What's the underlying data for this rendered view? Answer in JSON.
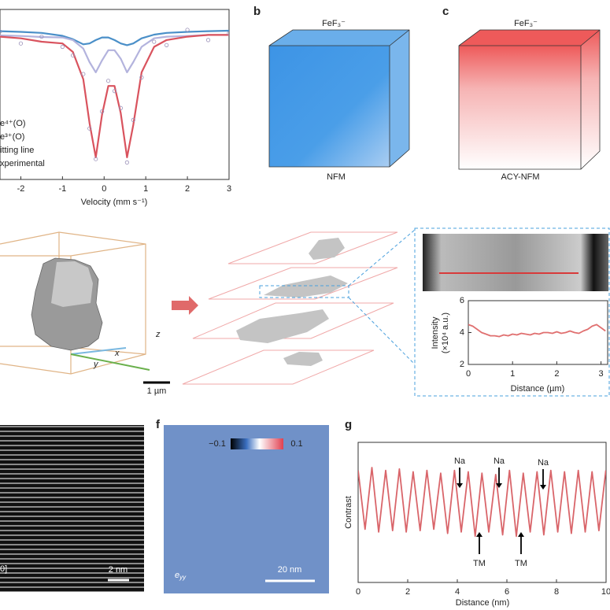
{
  "chart_data": [
    {
      "type": "line",
      "xlabel": "Velocity (mm s⁻¹)",
      "x": [
        -2.5,
        -2,
        -1.5,
        -1,
        -0.75,
        -0.5,
        -0.35,
        -0.2,
        -0.05,
        0.1,
        0.25,
        0.4,
        0.55,
        0.7,
        0.9,
        1.2,
        1.5,
        2,
        2.5,
        3
      ],
      "xlim": [
        -2.5,
        3
      ],
      "xticks": [
        -2,
        -1,
        0,
        1,
        2,
        3
      ],
      "ylim": [
        0,
        1
      ],
      "series": [
        {
          "name": "e⁴⁺(O)",
          "color": "#4a8fc8",
          "values": [
            0.872,
            0.868,
            0.862,
            0.845,
            0.825,
            0.795,
            0.8,
            0.82,
            0.835,
            0.835,
            0.82,
            0.8,
            0.79,
            0.8,
            0.83,
            0.852,
            0.862,
            0.868,
            0.872,
            0.875
          ]
        },
        {
          "name": "e³⁺(O)",
          "color": "#b3b3dd",
          "values": [
            0.847,
            0.844,
            0.838,
            0.835,
            0.82,
            0.77,
            0.69,
            0.63,
            0.7,
            0.76,
            0.76,
            0.71,
            0.63,
            0.69,
            0.78,
            0.83,
            0.84,
            0.844,
            0.85,
            0.85
          ]
        },
        {
          "name": "itting line",
          "color": "#d9535e",
          "values": [
            0.84,
            0.83,
            0.81,
            0.8,
            0.75,
            0.59,
            0.33,
            0.13,
            0.38,
            0.55,
            0.55,
            0.39,
            0.13,
            0.32,
            0.63,
            0.78,
            0.82,
            0.84,
            0.85,
            0.85
          ]
        },
        {
          "name": "xperimental",
          "color": "#9a90b8",
          "marker": "circle",
          "values": [
            0.87,
            0.8,
            0.84,
            0.78,
            0.73,
            0.62,
            0.3,
            0.12,
            0.4,
            0.58,
            0.52,
            0.42,
            0.1,
            0.35,
            0.6,
            0.81,
            0.79,
            0.88,
            0.82,
            0.86
          ]
        }
      ]
    },
    {
      "type": "line",
      "xlabel": "Distance (µm)",
      "ylabel": [
        "Intensity",
        "(×10⁴ a.u.)"
      ],
      "x": [
        0,
        0.1,
        0.2,
        0.3,
        0.4,
        0.5,
        0.6,
        0.7,
        0.8,
        0.9,
        1,
        1.1,
        1.2,
        1.3,
        1.4,
        1.5,
        1.6,
        1.7,
        1.8,
        1.9,
        2,
        2.1,
        2.2,
        2.3,
        2.4,
        2.5,
        2.6,
        2.7,
        2.8,
        2.9,
        3,
        3.1
      ],
      "xlim": [
        0,
        3.15
      ],
      "xticks": [
        0,
        1,
        2,
        3
      ],
      "ylim": [
        2,
        6
      ],
      "yticks": [
        2,
        4,
        6
      ],
      "series": [
        {
          "color": "#e07070",
          "values": [
            4.5,
            4.4,
            4.2,
            4.0,
            3.9,
            3.8,
            3.8,
            3.75,
            3.85,
            3.8,
            3.9,
            3.85,
            3.95,
            3.9,
            3.85,
            3.95,
            3.9,
            4.0,
            4.0,
            3.95,
            4.05,
            3.95,
            4.0,
            4.1,
            4.0,
            3.95,
            4.1,
            4.2,
            4.4,
            4.5,
            4.3,
            4.1
          ]
        }
      ]
    },
    {
      "type": "line",
      "xlabel": "Distance (nm)",
      "ylabel": [
        "Contrast"
      ],
      "x": [
        0,
        0.28,
        0.555,
        0.83,
        1.11,
        1.39,
        1.665,
        1.94,
        2.22,
        2.5,
        2.775,
        3.05,
        3.33,
        3.61,
        3.885,
        4.16,
        4.44,
        4.72,
        4.995,
        5.27,
        5.55,
        5.83,
        6.105,
        6.38,
        6.66,
        6.94,
        7.215,
        7.49,
        7.77,
        8.05,
        8.325,
        8.6,
        8.88,
        9.16,
        9.435,
        9.71,
        9.99
      ],
      "xlim": [
        0,
        10
      ],
      "xticks": [
        0,
        2,
        4,
        6,
        8,
        10
      ],
      "ylim": [
        0,
        1
      ],
      "annotations": [
        "Na",
        "Na",
        "Na",
        "TM",
        "TM"
      ],
      "series": [
        {
          "color": "#d9656a",
          "values": [
            0.8,
            0.38,
            0.82,
            0.36,
            0.8,
            0.37,
            0.81,
            0.36,
            0.79,
            0.37,
            0.8,
            0.38,
            0.78,
            0.35,
            0.8,
            0.36,
            0.79,
            0.33,
            0.78,
            0.36,
            0.77,
            0.34,
            0.8,
            0.33,
            0.78,
            0.36,
            0.79,
            0.34,
            0.8,
            0.36,
            0.79,
            0.35,
            0.8,
            0.36,
            0.79,
            0.37,
            0.8
          ]
        }
      ]
    }
  ],
  "panels": {
    "b": {
      "letter": "b",
      "top": "FeF₃⁻",
      "bottom": "NFM"
    },
    "c": {
      "letter": "c",
      "top": "FeF₃⁻",
      "bottom": "ACY-NFM"
    },
    "d": {
      "z": "z",
      "x": "x",
      "y": "y",
      "scale": "1 µm"
    },
    "e": {
      "zone": "0]",
      "scale": "2 nm"
    },
    "f": {
      "letter": "f",
      "cbar_min": "−0.1",
      "cbar_max": "0.1",
      "symbol": "e",
      "subscript": "yy",
      "scale": "20 nm"
    },
    "g": {
      "letter": "g"
    }
  }
}
